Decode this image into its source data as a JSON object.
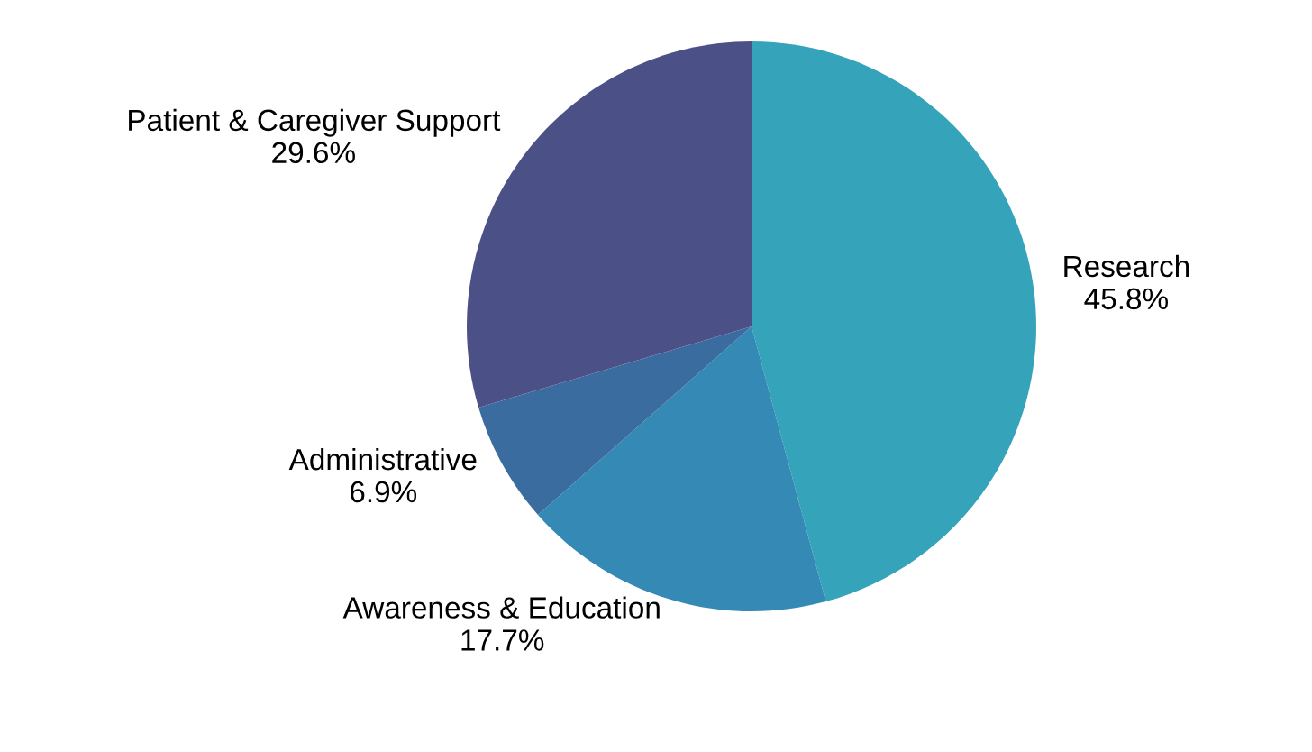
{
  "chart_data": {
    "type": "pie",
    "categories": [
      "Research",
      "Awareness & Education",
      "Administrative",
      "Patient & Caregiver Support"
    ],
    "values": [
      45.8,
      17.7,
      6.9,
      29.6
    ],
    "value_labels": [
      "45.8%",
      "17.7%",
      "6.9%",
      "29.6%"
    ],
    "colors": [
      "#35a4ba",
      "#348ab4",
      "#3a6c9f",
      "#4b5086"
    ],
    "legend": false
  }
}
